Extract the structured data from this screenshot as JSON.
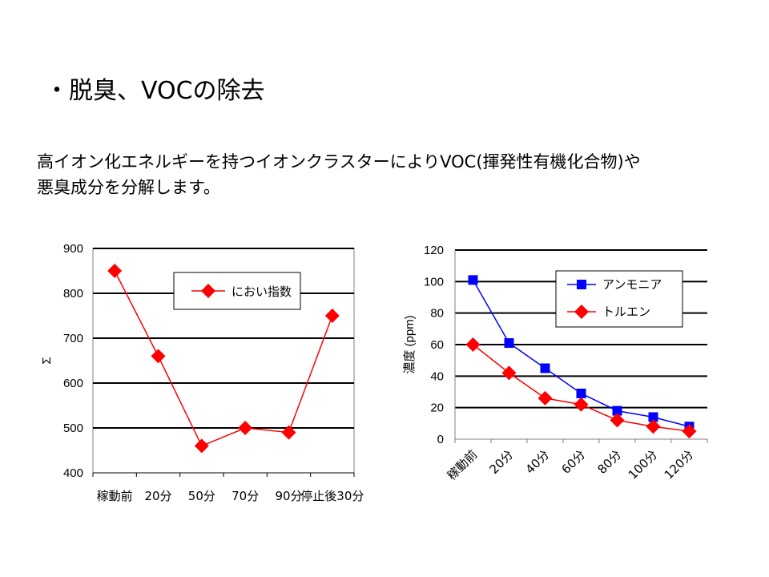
{
  "slide": {
    "title": "・脱臭、VOCの除去",
    "body_line1": "高イオン化エネルギーを持つイオンクラスターによりVOC(揮発性有機化合物)や",
    "body_line2": "悪臭成分を分解します。"
  },
  "chart_data": [
    {
      "type": "line",
      "categories": [
        "稼動前",
        "20分",
        "50分",
        "70分",
        "90分",
        "停止後30分"
      ],
      "series": [
        {
          "name": "におい指数",
          "values": [
            850,
            660,
            460,
            500,
            490,
            750
          ],
          "color": "#ff0000",
          "marker": "diamond"
        }
      ],
      "ylabel": "Σ",
      "ylim": [
        400,
        900
      ],
      "yticks": [
        400,
        500,
        600,
        700,
        800,
        900
      ],
      "grid": true,
      "legend": "top-center"
    },
    {
      "type": "line",
      "categories": [
        "稼動前",
        "20分",
        "40分",
        "60分",
        "80分",
        "100分",
        "120分"
      ],
      "series": [
        {
          "name": "アンモニア",
          "values": [
            101,
            61,
            45,
            29,
            18,
            14,
            8
          ],
          "color": "#0000ff",
          "marker": "square"
        },
        {
          "name": "トルエン",
          "values": [
            60,
            42,
            26,
            22,
            12,
            8,
            5
          ],
          "color": "#ff0000",
          "marker": "diamond"
        }
      ],
      "ylabel": "濃度 (ppm)",
      "ylim": [
        0,
        120
      ],
      "yticks": [
        0,
        20,
        40,
        60,
        80,
        100,
        120
      ],
      "grid": true,
      "legend": "top-right"
    }
  ]
}
